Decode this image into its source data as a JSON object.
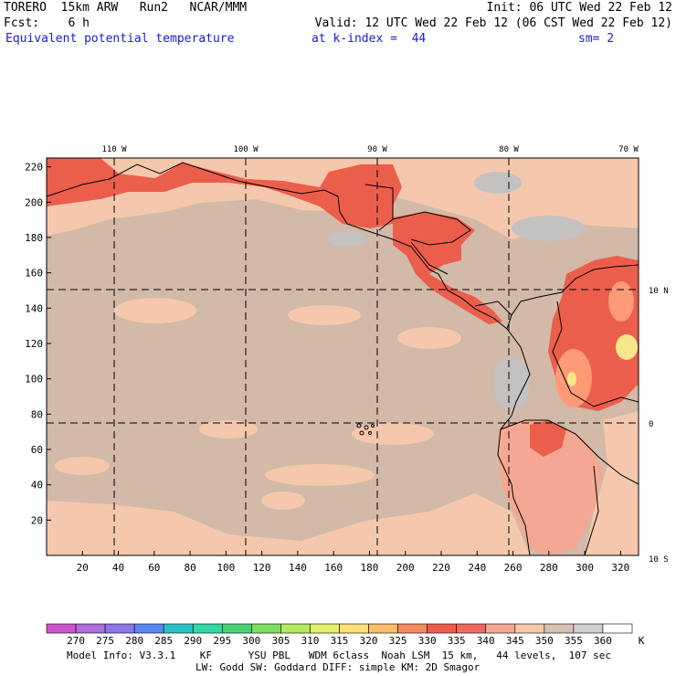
{
  "header": {
    "left_line1": "TORERO  15km ARW   Run2   NCAR/MMM",
    "right_line1": "Init: 06 UTC Wed 22 Feb 12",
    "left_line2": "Fcst:    6 h",
    "right_line2": "Valid: 12 UTC Wed 22 Feb 12 (06 CST Wed 22 Feb 12)",
    "field_label": "Equivalent potential temperature",
    "level_label": "at k-index =  44",
    "smooth_label": "sm= 2"
  },
  "map": {
    "lon_labels": [
      "110 W",
      "100 W",
      "90 W",
      "80 W",
      "70 W"
    ],
    "lat_labels": [
      "10 N",
      "0",
      "10 S"
    ],
    "y_ticks": [
      "220",
      "200",
      "180",
      "160",
      "140",
      "120",
      "100",
      "80",
      "60",
      "40",
      "20"
    ],
    "x_ticks": [
      "20",
      "40",
      "60",
      "80",
      "100",
      "120",
      "140",
      "160",
      "180",
      "200",
      "220",
      "240",
      "260",
      "280",
      "300",
      "320"
    ],
    "grid_i_max": 330,
    "grid_j_max": 225,
    "gridlines_lon": [
      -110,
      -100,
      -90,
      -80
    ],
    "gridlines_lat": [
      10,
      0
    ],
    "colors": {
      "ocean": "#d2b9a8",
      "warm_band": "#f5c8ad",
      "land_warm": "#f4a893",
      "hot": "#ec5e4c",
      "very_hot": "#ff9a76",
      "peak": "#f6e78a",
      "grey_patch": "#c4c1c1"
    }
  },
  "colorbar": {
    "levels": [
      "270",
      "275",
      "280",
      "285",
      "290",
      "295",
      "300",
      "305",
      "310",
      "315",
      "320",
      "325",
      "330",
      "335",
      "340",
      "345",
      "350",
      "355",
      "360"
    ],
    "unit": "K",
    "colors": [
      "#cc55cc",
      "#aa6fd8",
      "#8c76e8",
      "#5a87ee",
      "#2ebfc4",
      "#31d7a6",
      "#4ad178",
      "#7fdc62",
      "#b4e85e",
      "#e4f06a",
      "#fbe07a",
      "#f8bd6a",
      "#f48c62",
      "#ec5e4c",
      "#ee6a60",
      "#f4a893",
      "#f5c8ad",
      "#d6c1b4",
      "#cfcfcf",
      "#ffffff"
    ]
  },
  "footer": {
    "line1": "Model Info: V3.3.1    KF      YSU PBL   WDM 6class  Noah LSM  15 km,   44 levels,  107 sec",
    "line2": "LW: Godd SW: Goddard DIFF: simple KM: 2D Smagor"
  }
}
